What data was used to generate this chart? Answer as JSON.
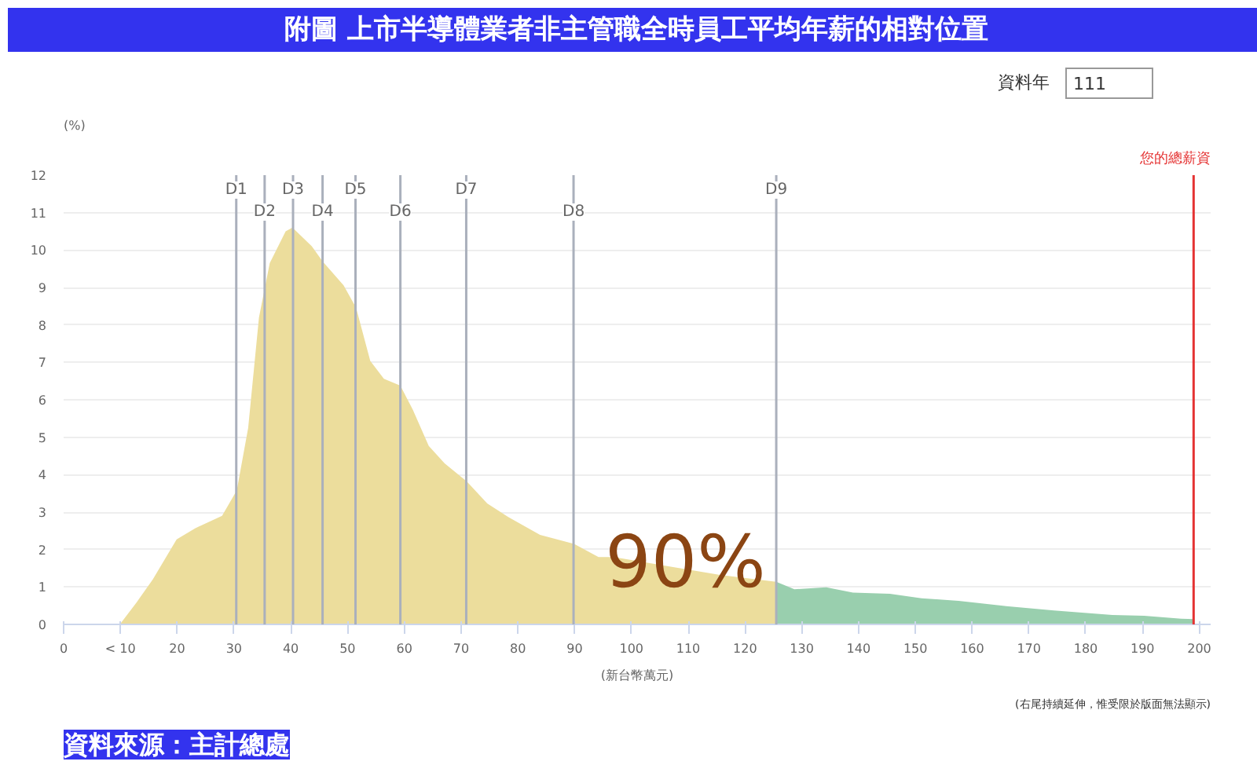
{
  "chart_data": {
    "type": "area",
    "title": "附圖 上市半導體業者非主管職全時員工平均年薪的相對位置",
    "ylabel": "(%)",
    "xlabel": "(新台幣萬元)",
    "xlim": [
      0,
      202
    ],
    "ylim": [
      0,
      12
    ],
    "xticks": [
      0,
      {
        "value": 10,
        "label": "< 10"
      },
      20,
      30,
      40,
      50,
      60,
      70,
      80,
      90,
      100,
      110,
      120,
      130,
      140,
      150,
      160,
      170,
      180,
      190,
      200
    ],
    "yticks": [
      0,
      1,
      2,
      3,
      4,
      5,
      6,
      7,
      8,
      9,
      10,
      11,
      12
    ],
    "grid": "y",
    "series": [
      {
        "color": "#ecdd9c",
        "x": [
          9.9,
          12.9,
          15.7,
          19.9,
          23.2,
          27.9,
          30.5,
          32.5,
          34.4,
          36.3,
          39.1,
          40.3,
          43.7,
          45.6,
          49.3,
          51.5,
          54,
          56.4,
          59.3,
          61.5,
          64.3,
          67.1,
          71,
          74.6,
          78.3,
          83.9,
          89.9,
          94.2,
          96.9,
          106.3,
          115.6,
          125.5
        ],
        "values": [
          0,
          0.6,
          1.2,
          2.27,
          2.57,
          2.9,
          3.58,
          5.25,
          8.2,
          9.65,
          10.5,
          10.6,
          10.1,
          9.7,
          9.06,
          8.46,
          7.04,
          6.56,
          6.38,
          5.73,
          4.77,
          4.3,
          3.82,
          3.23,
          2.87,
          2.39,
          2.15,
          1.8,
          1.8,
          1.56,
          1.32,
          1.14
        ]
      },
      {
        "color": "#99cfae",
        "x": [
          125.5,
          128.7,
          134.3,
          139,
          145.5,
          151.1,
          157.6,
          162.3,
          166,
          174.4,
          184.7,
          190.3,
          196.8,
          199.1
        ],
        "values": [
          1.14,
          0.94,
          0.99,
          0.85,
          0.82,
          0.7,
          0.63,
          0.55,
          0.49,
          0.37,
          0.25,
          0.23,
          0.15,
          0.14
        ]
      }
    ],
    "ref_lines": [
      {
        "axis": "x",
        "value": 30.4,
        "label": "D1",
        "color": "#aab0bc"
      },
      {
        "axis": "x",
        "value": 35.4,
        "label": "D2",
        "color": "#aab0bc"
      },
      {
        "axis": "x",
        "value": 40.4,
        "label": "D3",
        "color": "#aab0bc"
      },
      {
        "axis": "x",
        "value": 45.6,
        "label": "D4",
        "color": "#aab0bc"
      },
      {
        "axis": "x",
        "value": 51.4,
        "label": "D5",
        "color": "#aab0bc"
      },
      {
        "axis": "x",
        "value": 59.3,
        "label": "D6",
        "color": "#aab0bc"
      },
      {
        "axis": "x",
        "value": 70.9,
        "label": "D7",
        "color": "#aab0bc"
      },
      {
        "axis": "x",
        "value": 89.8,
        "label": "D8",
        "color": "#aab0bc"
      },
      {
        "axis": "x",
        "value": 125.5,
        "label": "D9",
        "color": "#aab0bc"
      },
      {
        "axis": "x",
        "value": 199,
        "label": "您的總薪資",
        "color": "#e53333"
      }
    ],
    "annotations": [
      "資料年",
      "111",
      "90%",
      "(右尾持續延伸，惟受限於版面無法顯示)",
      "資料來源：主計總處"
    ]
  }
}
